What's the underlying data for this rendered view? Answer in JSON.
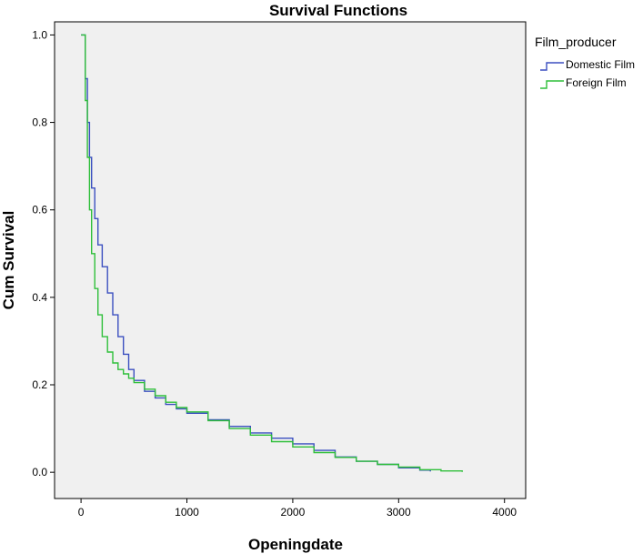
{
  "chart_data": {
    "type": "line",
    "title": "Survival Functions",
    "xlabel": "Openingdate",
    "ylabel": "Cum Survival",
    "xlim": [
      -250,
      4200
    ],
    "ylim": [
      -0.06,
      1.03
    ],
    "xticks": [
      0,
      1000,
      2000,
      3000,
      4000
    ],
    "xtick_labels": [
      "0",
      "1000",
      "2000",
      "3000",
      "4000"
    ],
    "yticks": [
      0.0,
      0.2,
      0.4,
      0.6,
      0.8,
      1.0
    ],
    "ytick_labels": [
      "0.0",
      "0.2",
      "0.4",
      "0.6",
      "0.8",
      "1.0"
    ],
    "grid": false,
    "step": true,
    "legend": {
      "title": "Film_producer",
      "position": "right"
    },
    "series": [
      {
        "name": "Domestic Film",
        "color": "#3b4fc0",
        "x": [
          0,
          20,
          40,
          60,
          80,
          100,
          130,
          160,
          200,
          250,
          300,
          350,
          400,
          450,
          500,
          600,
          700,
          800,
          900,
          1000,
          1200,
          1400,
          1600,
          1800,
          2000,
          2200,
          2400,
          2600,
          2800,
          3000,
          3200,
          3300
        ],
        "y": [
          1.0,
          1.0,
          0.9,
          0.8,
          0.72,
          0.65,
          0.58,
          0.52,
          0.47,
          0.41,
          0.36,
          0.31,
          0.27,
          0.235,
          0.21,
          0.185,
          0.17,
          0.155,
          0.145,
          0.135,
          0.12,
          0.105,
          0.09,
          0.078,
          0.065,
          0.05,
          0.035,
          0.025,
          0.018,
          0.01,
          0.005,
          0.002
        ]
      },
      {
        "name": "Foreign Film",
        "color": "#2fbf3a",
        "x": [
          0,
          20,
          40,
          60,
          80,
          100,
          130,
          160,
          200,
          250,
          300,
          350,
          400,
          450,
          500,
          600,
          700,
          800,
          900,
          1000,
          1200,
          1400,
          1600,
          1800,
          2000,
          2200,
          2400,
          2600,
          2800,
          3000,
          3200,
          3400,
          3600
        ],
        "y": [
          1.0,
          1.0,
          0.85,
          0.72,
          0.6,
          0.5,
          0.42,
          0.36,
          0.31,
          0.275,
          0.25,
          0.235,
          0.225,
          0.215,
          0.205,
          0.19,
          0.175,
          0.16,
          0.148,
          0.138,
          0.118,
          0.1,
          0.085,
          0.07,
          0.058,
          0.045,
          0.034,
          0.025,
          0.018,
          0.012,
          0.006,
          0.003,
          0.001
        ]
      }
    ]
  }
}
